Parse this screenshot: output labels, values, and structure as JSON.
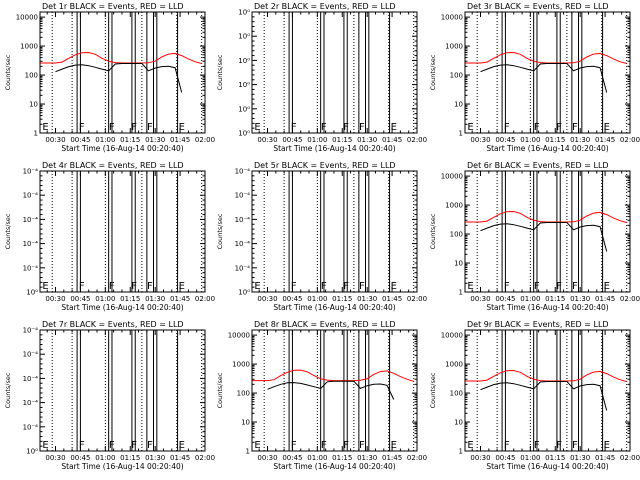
{
  "figure": {
    "x_tick_labels": [
      "00:30",
      "00:45",
      "01:00",
      "01:15",
      "01:30",
      "01:45",
      "02:00"
    ],
    "x_label": "Start Time (16-Aug-14 00:20:40)",
    "y_label": "Counts/sec",
    "colors": {
      "events": "#000000",
      "lld": "#ff0000",
      "axis": "#000000"
    }
  },
  "chart_data": [
    {
      "type": "line",
      "title": "Det 1r BLACK = Events, RED = LLD",
      "ylabel": "Counts/sec",
      "xlabel": "Start Time (16-Aug-14 00:20:40)",
      "yscale": "log",
      "ylim": [
        1,
        15000
      ],
      "xlim": [
        "00:20:40",
        "02:00:00"
      ],
      "y_tick_labels": [
        "1",
        "10",
        "100",
        "1000",
        "10000"
      ],
      "flags": [
        "E",
        "F",
        "F",
        "F",
        "F",
        "E"
      ],
      "series": [
        {
          "x": [
            "00:20:40",
            "00:30:00",
            "00:34:00",
            "00:38:00",
            "00:42:00",
            "00:46:00",
            "00:50:00",
            "00:54:00",
            "00:58:00",
            "01:02:00",
            "01:06:00",
            "01:10:00",
            "01:14:00",
            "01:18:00",
            "01:22:00",
            "01:26:00",
            "01:30:00",
            "01:34:00",
            "01:38:00",
            "01:42:00",
            "01:46:00",
            "01:50:00",
            "01:54:00",
            "01:58:00"
          ],
          "values": [
            260,
            260,
            280,
            380,
            500,
            590,
            600,
            520,
            380,
            300,
            270,
            260,
            260,
            260,
            260,
            265,
            300,
            420,
            530,
            560,
            470,
            360,
            290,
            250
          ]
        },
        {
          "x": [
            "00:30:00",
            "00:34:00",
            "00:38:00",
            "00:42:00",
            "00:46:00",
            "00:50:00",
            "00:54:00",
            "00:58:00",
            "01:02:00",
            "01:06:00",
            "01:10:00",
            "01:14:00",
            "01:18:00",
            "01:22:00",
            "01:26:00",
            "01:30:00",
            "01:34:00",
            "01:38:00",
            "01:42:00",
            "01:46:00"
          ],
          "values": [
            130,
            160,
            195,
            220,
            225,
            210,
            185,
            160,
            140,
            240,
            250,
            250,
            250,
            250,
            140,
            175,
            195,
            200,
            180,
            25
          ]
        }
      ]
    },
    {
      "type": "line",
      "title": "Det 2r BLACK = Events, RED = LLD",
      "ylabel": "Counts/sec",
      "xlabel": "Start Time (16-Aug-14 00:20:40)",
      "yscale": "log",
      "ylim": [
        1,
        15000
      ],
      "xlim": [
        "00:20:40",
        "02:00:00"
      ],
      "y_tick_labels": [
        "10⁰",
        "10⁰",
        "10⁰",
        "10⁰",
        "10⁰",
        "10⁰"
      ],
      "flags": [
        "E",
        "F",
        "F",
        "F",
        "F",
        "E"
      ],
      "series": []
    },
    {
      "type": "line",
      "title": "Det 3r BLACK = Events, RED = LLD",
      "ylabel": "Counts/sec",
      "xlabel": "Start Time (16-Aug-14 00:20:40)",
      "yscale": "log",
      "ylim": [
        1,
        15000
      ],
      "xlim": [
        "00:20:40",
        "02:00:00"
      ],
      "y_tick_labels": [
        "1",
        "10",
        "100",
        "1000",
        "10000"
      ],
      "flags": [
        "E",
        "F",
        "F",
        "F",
        "F",
        "E"
      ],
      "series": [
        {
          "x": [
            "00:20:40",
            "00:30:00",
            "00:34:00",
            "00:38:00",
            "00:42:00",
            "00:46:00",
            "00:50:00",
            "00:54:00",
            "00:58:00",
            "01:02:00",
            "01:06:00",
            "01:10:00",
            "01:14:00",
            "01:18:00",
            "01:22:00",
            "01:26:00",
            "01:30:00",
            "01:34:00",
            "01:38:00",
            "01:42:00",
            "01:46:00",
            "01:50:00",
            "01:54:00",
            "01:58:00"
          ],
          "values": [
            260,
            260,
            280,
            380,
            500,
            590,
            600,
            520,
            380,
            300,
            270,
            260,
            260,
            260,
            260,
            265,
            300,
            420,
            530,
            560,
            470,
            360,
            290,
            250
          ]
        },
        {
          "x": [
            "00:30:00",
            "00:34:00",
            "00:38:00",
            "00:42:00",
            "00:46:00",
            "00:50:00",
            "00:54:00",
            "00:58:00",
            "01:02:00",
            "01:06:00",
            "01:10:00",
            "01:14:00",
            "01:18:00",
            "01:22:00",
            "01:26:00",
            "01:30:00",
            "01:34:00",
            "01:38:00",
            "01:42:00",
            "01:46:00"
          ],
          "values": [
            130,
            160,
            195,
            220,
            225,
            210,
            185,
            160,
            140,
            240,
            250,
            250,
            250,
            250,
            140,
            175,
            195,
            200,
            180,
            25
          ]
        }
      ]
    },
    {
      "type": "line",
      "title": "Det 4r BLACK = Events, RED = LLD",
      "ylabel": "Counts/sec",
      "xlabel": "Start Time (16-Aug-14 00:20:40)",
      "yscale": "log",
      "ylim": [
        1,
        15000
      ],
      "xlim": [
        "00:20:40",
        "02:00:00"
      ],
      "y_tick_labels": [
        "10⁻⁴",
        "10⁻⁴",
        "10⁻⁴",
        "10⁻⁴",
        "10⁻⁴",
        "10⁰"
      ],
      "flags": [
        "E",
        "F",
        "F",
        "F",
        "F",
        "E"
      ],
      "series": []
    },
    {
      "type": "line",
      "title": "Det 5r BLACK = Events, RED = LLD",
      "ylabel": "Counts/sec",
      "xlabel": "Start Time (16-Aug-14 00:20:40)",
      "yscale": "log",
      "ylim": [
        1,
        15000
      ],
      "xlim": [
        "00:20:40",
        "02:00:00"
      ],
      "y_tick_labels": [
        "10⁻⁴",
        "10⁻⁴",
        "10⁻⁴",
        "10⁻⁴",
        "10⁻⁴",
        "10⁰"
      ],
      "flags": [
        "E",
        "F",
        "F",
        "F",
        "F",
        "E"
      ],
      "series": []
    },
    {
      "type": "line",
      "title": "Det 6r BLACK = Events, RED = LLD",
      "ylabel": "Counts/sec",
      "xlabel": "Start Time (16-Aug-14 00:20:40)",
      "yscale": "log",
      "ylim": [
        1,
        15000
      ],
      "xlim": [
        "00:20:40",
        "02:00:00"
      ],
      "y_tick_labels": [
        "1",
        "10",
        "100",
        "1000",
        "10000"
      ],
      "flags": [
        "E",
        "F",
        "F",
        "F",
        "F",
        "E"
      ],
      "series": [
        {
          "x": [
            "00:20:40",
            "00:30:00",
            "00:34:00",
            "00:38:00",
            "00:42:00",
            "00:46:00",
            "00:50:00",
            "00:54:00",
            "00:58:00",
            "01:02:00",
            "01:06:00",
            "01:10:00",
            "01:14:00",
            "01:18:00",
            "01:22:00",
            "01:26:00",
            "01:30:00",
            "01:34:00",
            "01:38:00",
            "01:42:00",
            "01:46:00",
            "01:50:00",
            "01:54:00",
            "01:58:00"
          ],
          "values": [
            260,
            260,
            280,
            380,
            500,
            590,
            600,
            520,
            380,
            300,
            270,
            260,
            260,
            260,
            260,
            265,
            300,
            420,
            530,
            560,
            470,
            360,
            290,
            250
          ]
        },
        {
          "x": [
            "00:30:00",
            "00:34:00",
            "00:38:00",
            "00:42:00",
            "00:46:00",
            "00:50:00",
            "00:54:00",
            "00:58:00",
            "01:02:00",
            "01:06:00",
            "01:10:00",
            "01:14:00",
            "01:18:00",
            "01:22:00",
            "01:26:00",
            "01:30:00",
            "01:34:00",
            "01:38:00",
            "01:42:00",
            "01:46:00"
          ],
          "values": [
            130,
            160,
            195,
            220,
            225,
            210,
            185,
            160,
            140,
            240,
            250,
            250,
            250,
            250,
            140,
            175,
            195,
            200,
            180,
            25
          ]
        }
      ]
    },
    {
      "type": "line",
      "title": "Det 7r BLACK = Events, RED = LLD",
      "ylabel": "Counts/sec",
      "xlabel": "Start Time (16-Aug-14 00:20:40)",
      "yscale": "log",
      "ylim": [
        1,
        15000
      ],
      "xlim": [
        "00:20:40",
        "02:00:00"
      ],
      "y_tick_labels": [
        "10⁻⁴",
        "10⁻⁴",
        "10⁻⁴",
        "10⁻⁴",
        "10⁻⁴",
        "10⁰"
      ],
      "flags": [
        "E",
        "F",
        "F",
        "F",
        "F",
        "E"
      ],
      "series": []
    },
    {
      "type": "line",
      "title": "Det 8r BLACK = Events, RED = LLD",
      "ylabel": "Counts/sec",
      "xlabel": "Start Time (16-Aug-14 00:20:40)",
      "yscale": "log",
      "ylim": [
        1,
        15000
      ],
      "xlim": [
        "00:20:40",
        "02:00:00"
      ],
      "y_tick_labels": [
        "1",
        "10",
        "100",
        "1000",
        "10000"
      ],
      "flags": [
        "E",
        "F",
        "F",
        "F",
        "F",
        "E"
      ],
      "series": [
        {
          "x": [
            "00:20:40",
            "00:30:00",
            "00:34:00",
            "00:38:00",
            "00:42:00",
            "00:46:00",
            "00:50:00",
            "00:54:00",
            "00:58:00",
            "01:02:00",
            "01:06:00",
            "01:10:00",
            "01:14:00",
            "01:18:00",
            "01:22:00",
            "01:26:00",
            "01:30:00",
            "01:34:00",
            "01:38:00",
            "01:42:00",
            "01:46:00",
            "01:50:00",
            "01:54:00",
            "01:58:00"
          ],
          "values": [
            270,
            270,
            290,
            400,
            520,
            610,
            620,
            540,
            400,
            310,
            280,
            270,
            270,
            270,
            270,
            275,
            310,
            440,
            550,
            580,
            480,
            370,
            300,
            255
          ]
        },
        {
          "x": [
            "00:30:00",
            "00:34:00",
            "00:38:00",
            "00:42:00",
            "00:46:00",
            "00:50:00",
            "00:54:00",
            "00:58:00",
            "01:02:00",
            "01:06:00",
            "01:10:00",
            "01:14:00",
            "01:18:00",
            "01:22:00",
            "01:26:00",
            "01:30:00",
            "01:34:00",
            "01:38:00",
            "01:42:00",
            "01:46:00"
          ],
          "values": [
            135,
            165,
            200,
            225,
            230,
            215,
            190,
            165,
            145,
            245,
            255,
            255,
            255,
            255,
            145,
            180,
            200,
            205,
            185,
            60
          ]
        }
      ]
    },
    {
      "type": "line",
      "title": "Det 9r BLACK = Events, RED = LLD",
      "ylabel": "Counts/sec",
      "xlabel": "Start Time (16-Aug-14 00:20:40)",
      "yscale": "log",
      "ylim": [
        1,
        15000
      ],
      "xlim": [
        "00:20:40",
        "02:00:00"
      ],
      "y_tick_labels": [
        "1",
        "10",
        "100",
        "1000",
        "10000"
      ],
      "flags": [
        "E",
        "F",
        "F",
        "F",
        "F",
        "E"
      ],
      "series": [
        {
          "x": [
            "00:20:40",
            "00:30:00",
            "00:34:00",
            "00:38:00",
            "00:42:00",
            "00:46:00",
            "00:50:00",
            "00:54:00",
            "00:58:00",
            "01:02:00",
            "01:06:00",
            "01:10:00",
            "01:14:00",
            "01:18:00",
            "01:22:00",
            "01:26:00",
            "01:30:00",
            "01:34:00",
            "01:38:00",
            "01:42:00",
            "01:46:00",
            "01:50:00",
            "01:54:00",
            "01:58:00"
          ],
          "values": [
            260,
            260,
            280,
            380,
            500,
            590,
            600,
            520,
            380,
            300,
            270,
            260,
            260,
            260,
            260,
            265,
            300,
            420,
            530,
            560,
            470,
            360,
            290,
            250
          ]
        },
        {
          "x": [
            "00:30:00",
            "00:34:00",
            "00:38:00",
            "00:42:00",
            "00:46:00",
            "00:50:00",
            "00:54:00",
            "00:58:00",
            "01:02:00",
            "01:06:00",
            "01:10:00",
            "01:14:00",
            "01:18:00",
            "01:22:00",
            "01:26:00",
            "01:30:00",
            "01:34:00",
            "01:38:00",
            "01:42:00",
            "01:46:00"
          ],
          "values": [
            130,
            160,
            195,
            220,
            225,
            210,
            185,
            160,
            140,
            240,
            250,
            250,
            250,
            250,
            140,
            175,
            195,
            200,
            180,
            25
          ]
        }
      ]
    }
  ]
}
